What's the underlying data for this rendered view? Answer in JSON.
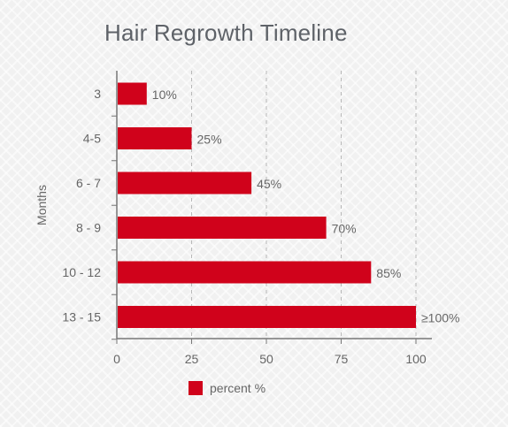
{
  "chart_data": {
    "type": "bar",
    "orientation": "horizontal",
    "title": "Hair Regrowth Timeline",
    "ylabel": "Months",
    "xlabel": "",
    "categories": [
      "3",
      "4-5",
      "6 - 7",
      "8 - 9",
      "10 - 12",
      "13 - 15"
    ],
    "series": [
      {
        "name": "percent %",
        "values": [
          10,
          25,
          45,
          70,
          85,
          100
        ],
        "labels": [
          "10%",
          "25%",
          "45%",
          "70%",
          "85%",
          "≥100%"
        ],
        "color": "#d0021b"
      }
    ],
    "xlim": [
      0,
      100
    ],
    "xticks": [
      0,
      25,
      50,
      75,
      100
    ],
    "grid": "vertical dashed",
    "legend_position": "bottom"
  }
}
